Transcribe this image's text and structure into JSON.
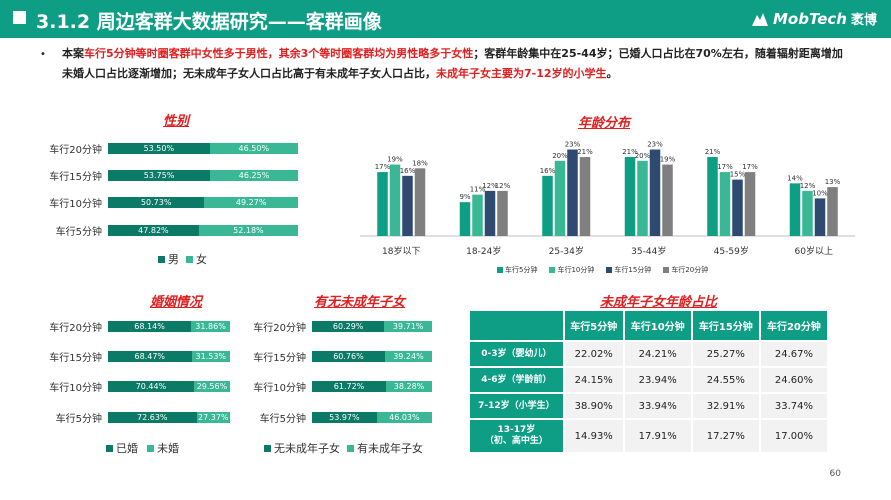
{
  "header": {
    "title": "3.1.2 周边客群大数据研究——客群画像",
    "logo_text": "MobTech",
    "logo_cn": "袤博"
  },
  "summary": {
    "p1": "本案",
    "p2": "车行5分钟等时圈客群中女性多于男性",
    "p3": "，其余3个等时圈客群均为男性略多于女性",
    "p4": "；客群年龄集中在25-44岁；已婚人口占比在70%左右，随着辐射距离增加未婚人口占比逐渐增加；无未成年子女人口占比高于有未成年子女人口占比，",
    "p5": "未成年子女主要为7-12岁的小学生",
    "p6": "。"
  },
  "gender": {
    "title": "性别",
    "rows": [
      {
        "label": "车行20分钟",
        "a": 53.5,
        "a_text": "53.50%",
        "b_text": "46.50%"
      },
      {
        "label": "车行15分钟",
        "a": 53.75,
        "a_text": "53.75%",
        "b_text": "46.25%"
      },
      {
        "label": "车行10分钟",
        "a": 50.73,
        "a_text": "50.73%",
        "b_text": "49.27%"
      },
      {
        "label": "车行5分钟",
        "a": 47.82,
        "a_text": "47.82%",
        "b_text": "52.18%"
      }
    ],
    "legend": [
      "男",
      "女"
    ]
  },
  "marriage": {
    "title": "婚姻情况",
    "rows": [
      {
        "label": "车行20分钟",
        "a": 68.14,
        "a_text": "68.14%",
        "b_text": "31.86%"
      },
      {
        "label": "车行15分钟",
        "a": 68.47,
        "a_text": "68.47%",
        "b_text": "31.53%"
      },
      {
        "label": "车行10分钟",
        "a": 70.44,
        "a_text": "70.44%",
        "b_text": "29.56%"
      },
      {
        "label": "车行5分钟",
        "a": 72.63,
        "a_text": "72.63%",
        "b_text": "27.37%"
      }
    ],
    "legend": [
      "已婚",
      "未婚"
    ]
  },
  "children": {
    "title": "有无未成年子女",
    "rows": [
      {
        "label": "车行20分钟",
        "a": 60.29,
        "a_text": "60.29%",
        "b_text": "39.71%"
      },
      {
        "label": "车行15分钟",
        "a": 60.76,
        "a_text": "60.76%",
        "b_text": "39.24%"
      },
      {
        "label": "车行10分钟",
        "a": 61.72,
        "a_text": "61.72%",
        "b_text": "38.28%"
      },
      {
        "label": "车行5分钟",
        "a": 53.97,
        "a_text": "53.97%",
        "b_text": "46.03%"
      }
    ],
    "legend": [
      "无未成年子女",
      "有未成年子女"
    ]
  },
  "age": {
    "title": "年龄分布",
    "legend": [
      "车行5分钟",
      "车行10分钟",
      "车行15分钟",
      "车行20分钟"
    ]
  },
  "minor_table": {
    "title": "未成年子女年龄占比",
    "headers": [
      "车行5分钟",
      "车行10分钟",
      "车行15分钟",
      "车行20分钟"
    ],
    "rows": [
      {
        "label": "0-3岁（婴幼儿）",
        "values": [
          "22.02%",
          "24.21%",
          "25.27%",
          "24.67%"
        ]
      },
      {
        "label": "4-6岁（学龄前）",
        "values": [
          "24.15%",
          "23.94%",
          "24.55%",
          "24.60%"
        ]
      },
      {
        "label": "7-12岁（小学生）",
        "values": [
          "38.90%",
          "33.94%",
          "32.91%",
          "33.74%"
        ]
      },
      {
        "label": "13-17岁\n（初、高中生）",
        "values": [
          "14.93%",
          "17.91%",
          "17.27%",
          "17.00%"
        ]
      }
    ]
  },
  "page_number": "60",
  "colors": {
    "male": "#0b7a66",
    "female": "#3ab795",
    "header": "#0e9e86",
    "s5": "#0e9e86",
    "s10": "#3ab795",
    "s15": "#2e4a70",
    "s20": "#7f7f7f"
  },
  "chart_data": [
    {
      "type": "bar",
      "title": "年龄分布",
      "categories": [
        "18岁以下",
        "18-24岁",
        "25-34岁",
        "35-44岁",
        "45-59岁",
        "60岁以上"
      ],
      "series": [
        {
          "name": "车行5分钟",
          "values": [
            17,
            9,
            16,
            21,
            21,
            14
          ]
        },
        {
          "name": "车行10分钟",
          "values": [
            19,
            11,
            20,
            20,
            17,
            12
          ]
        },
        {
          "name": "车行15分钟",
          "values": [
            16,
            12,
            23,
            23,
            15,
            10
          ]
        },
        {
          "name": "车行20分钟",
          "values": [
            18,
            12,
            21,
            19,
            17,
            13
          ]
        }
      ],
      "data_labels": [
        [
          "17%",
          "9%",
          "16%",
          "21%",
          "21%",
          "14%"
        ],
        [
          "19%",
          "11%",
          "20%",
          "20%",
          "17%",
          "12%"
        ],
        [
          "16%",
          "12%",
          "23%",
          "23%",
          "15%",
          "10%"
        ],
        [
          "18%",
          "12%",
          "21%",
          "19%",
          "17%",
          "13%"
        ]
      ],
      "ylim": [
        0,
        25
      ],
      "legend_position": "bottom"
    }
  ]
}
